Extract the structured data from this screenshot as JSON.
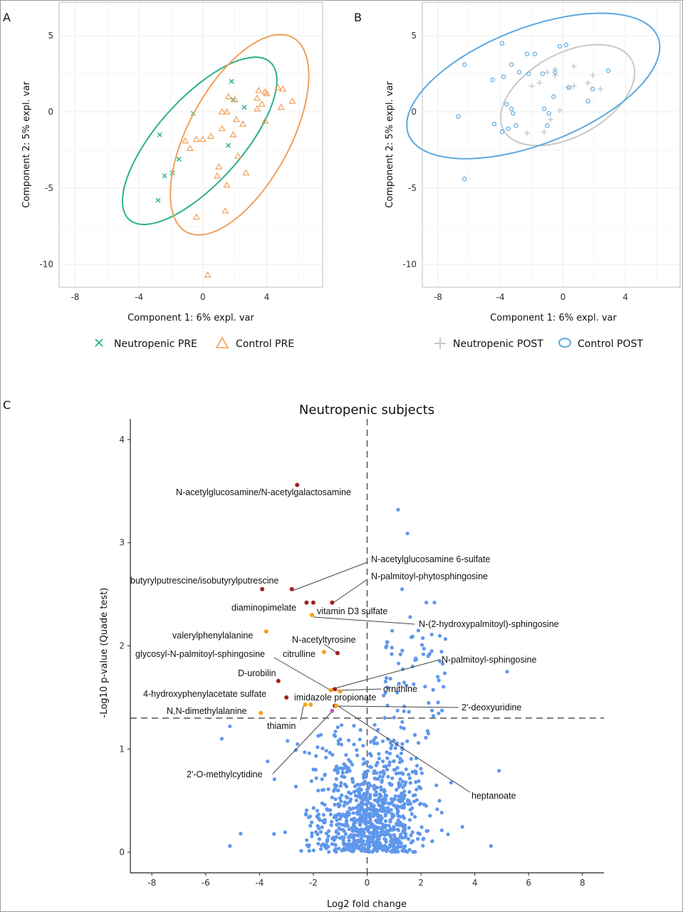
{
  "panels": {
    "a": {
      "tag": "A"
    },
    "b": {
      "tag": "B"
    },
    "c": {
      "tag": "C"
    }
  },
  "chart_data": [
    {
      "id": "A",
      "type": "scatter",
      "xlabel": "Component 1: 6% expl. var",
      "ylabel": "Component 2: 5% expl. var",
      "xlim": [
        -9,
        7.5
      ],
      "ylim": [
        -11.5,
        7.2
      ],
      "xticks": [
        -8,
        -4,
        0,
        4
      ],
      "yticks": [
        5,
        0,
        -5,
        -10
      ],
      "grid": true,
      "legend_position": "bottom",
      "series": [
        {
          "name": "Neutropenic PRE",
          "marker": "x",
          "color": "#2bb08a",
          "points": [
            [
              -2.8,
              -5.8
            ],
            [
              -2.4,
              -4.2
            ],
            [
              -1.9,
              -4.0
            ],
            [
              -1.5,
              -3.1
            ],
            [
              -2.7,
              -1.5
            ],
            [
              -0.6,
              -0.1
            ],
            [
              1.8,
              2.0
            ],
            [
              2.6,
              0.3
            ],
            [
              1.6,
              -2.2
            ],
            [
              1.9,
              0.8
            ]
          ],
          "ellipse": {
            "cx": -0.2,
            "cy": -1.9,
            "rx": 6.8,
            "ry": 2.7,
            "angle_deg": 50
          }
        },
        {
          "name": "Control PRE",
          "marker": "triangle",
          "color": "#f0a05a",
          "points": [
            [
              0.3,
              -10.7
            ],
            [
              -0.4,
              -6.9
            ],
            [
              1.4,
              -6.5
            ],
            [
              1.5,
              -4.8
            ],
            [
              0.9,
              -4.2
            ],
            [
              2.7,
              -4.0
            ],
            [
              -0.8,
              -2.4
            ],
            [
              1.0,
              -3.6
            ],
            [
              2.2,
              -2.9
            ],
            [
              -1.1,
              -1.9
            ],
            [
              -0.4,
              -1.8
            ],
            [
              0.0,
              -1.8
            ],
            [
              0.5,
              -1.6
            ],
            [
              1.2,
              -1.1
            ],
            [
              1.9,
              -1.5
            ],
            [
              2.5,
              -0.8
            ],
            [
              2.1,
              -0.5
            ],
            [
              3.9,
              -0.6
            ],
            [
              3.4,
              0.2
            ],
            [
              1.2,
              0.0
            ],
            [
              1.5,
              0.0
            ],
            [
              1.6,
              1.0
            ],
            [
              2.0,
              0.8
            ],
            [
              3.4,
              0.9
            ],
            [
              3.7,
              0.5
            ],
            [
              4.0,
              1.2
            ],
            [
              3.9,
              1.3
            ],
            [
              3.5,
              1.4
            ],
            [
              4.7,
              1.6
            ],
            [
              5.6,
              0.7
            ],
            [
              4.9,
              0.3
            ],
            [
              5.0,
              1.5
            ]
          ],
          "ellipse": {
            "cx": 2.3,
            "cy": -1.5,
            "rx": 7.2,
            "ry": 3.2,
            "angle_deg": 63
          }
        }
      ]
    },
    {
      "id": "B",
      "type": "scatter",
      "xlabel": "Component 1: 6% expl. var",
      "ylabel": "Component 2: 5% expl. var",
      "xlim": [
        -9,
        7.5
      ],
      "ylim": [
        -11.5,
        7.2
      ],
      "xticks": [
        -8,
        -4,
        0,
        4
      ],
      "yticks": [
        5,
        0,
        -5,
        -10
      ],
      "grid": true,
      "legend_position": "bottom",
      "series": [
        {
          "name": "Neutropenic POST",
          "marker": "plus",
          "color": "#c8c8c8",
          "points": [
            [
              -2.3,
              -1.4
            ],
            [
              -1.2,
              -1.3
            ],
            [
              -0.8,
              -0.5
            ],
            [
              -0.2,
              0.1
            ],
            [
              -2.0,
              1.7
            ],
            [
              -1.5,
              1.9
            ],
            [
              -1.0,
              2.6
            ],
            [
              -0.5,
              2.4
            ],
            [
              0.7,
              1.7
            ],
            [
              0.3,
              1.6
            ],
            [
              0.7,
              3.0
            ],
            [
              1.9,
              2.4
            ],
            [
              2.4,
              1.5
            ],
            [
              1.6,
              1.9
            ],
            [
              -0.5,
              2.8
            ]
          ],
          "ellipse": {
            "cx": 0.3,
            "cy": 1.1,
            "rx": 4.7,
            "ry": 2.7,
            "angle_deg": 30
          }
        },
        {
          "name": "Control POST",
          "marker": "circle",
          "color": "#5aa9e0",
          "points": [
            [
              -6.3,
              3.1
            ],
            [
              -6.7,
              -0.3
            ],
            [
              -6.3,
              -4.4
            ],
            [
              -4.5,
              2.1
            ],
            [
              -4.4,
              -0.8
            ],
            [
              -3.9,
              4.5
            ],
            [
              -3.8,
              2.3
            ],
            [
              -3.6,
              0.5
            ],
            [
              -3.5,
              -1.1
            ],
            [
              -3.9,
              -1.3
            ],
            [
              -3.3,
              3.1
            ],
            [
              -3.3,
              0.2
            ],
            [
              -3.2,
              -0.1
            ],
            [
              -3.0,
              -0.9
            ],
            [
              -2.8,
              2.6
            ],
            [
              -2.3,
              3.8
            ],
            [
              -2.2,
              2.5
            ],
            [
              -1.8,
              3.8
            ],
            [
              -1.3,
              2.5
            ],
            [
              -1.2,
              0.2
            ],
            [
              -1.0,
              -0.9
            ],
            [
              -0.9,
              -0.1
            ],
            [
              -0.6,
              1.0
            ],
            [
              -0.5,
              2.6
            ],
            [
              -0.2,
              4.3
            ],
            [
              0.2,
              4.4
            ],
            [
              0.4,
              1.6
            ],
            [
              1.6,
              0.7
            ],
            [
              1.9,
              1.5
            ],
            [
              2.9,
              2.7
            ]
          ],
          "ellipse": {
            "cx": -1.9,
            "cy": 1.7,
            "rx": 8.6,
            "ry": 3.8,
            "angle_deg": 22
          }
        }
      ]
    },
    {
      "id": "C",
      "type": "scatter",
      "title": "Neutropenic subjects",
      "xlabel": "Log2 fold change",
      "ylabel": "-Log10 p-value (Quade test)",
      "xlim": [
        -8.8,
        8.8
      ],
      "ylim": [
        -0.2,
        4.2
      ],
      "xticks": [
        -8,
        -6,
        -4,
        -2,
        0,
        2,
        4,
        6,
        8
      ],
      "yticks": [
        0,
        1,
        2,
        3,
        4
      ],
      "grid": false,
      "reference_lines": {
        "vertical_x": 0,
        "horizontal_y": 1.3
      },
      "background_color": "#5f97ec",
      "highlighted": [
        {
          "label": "N-acetylglucosamine/N-acetylgalactosamine",
          "x": -2.6,
          "y": 3.56,
          "color": "#a11f1f"
        },
        {
          "label": "N-acetylglucosamine 6-sulfate",
          "x": -2.8,
          "y": 2.55,
          "color": "#a11f1f"
        },
        {
          "label": "butyrylputrescine/isobutyrylputrescine",
          "x": -3.9,
          "y": 2.55,
          "color": "#a11f1f"
        },
        {
          "label": "N-palmitoyl-phytosphingosine",
          "x": -1.3,
          "y": 2.42,
          "color": "#a11f1f"
        },
        {
          "label": "diaminopimelate",
          "x": -2.0,
          "y": 2.42,
          "color": "#a11f1f"
        },
        {
          "label": "vitamin D3 sulfate",
          "x": -2.25,
          "y": 2.42,
          "color": "#a11f1f"
        },
        {
          "label": "N-(2-hydroxypalmitoyl)-sphingosine",
          "x": -2.05,
          "y": 2.3,
          "color": "#f5a019"
        },
        {
          "label": "valerylphenylalanine",
          "x": -3.75,
          "y": 2.14,
          "color": "#f5a019"
        },
        {
          "label": "N-acetyltyrosine",
          "x": -1.1,
          "y": 1.93,
          "color": "#a11f1f"
        },
        {
          "label": "citrulline",
          "x": -1.6,
          "y": 1.94,
          "color": "#f5a019"
        },
        {
          "label": "glycosyl-N-palmitoyl-sphingosine",
          "x": -1.35,
          "y": 1.57,
          "color": "#f5a019"
        },
        {
          "label": "N-palmitoyl-sphingosine",
          "x": -1.2,
          "y": 1.58,
          "color": "#a11f1f"
        },
        {
          "label": "D-urobilin",
          "x": -3.3,
          "y": 1.66,
          "color": "#a11f1f"
        },
        {
          "label": "ornithine",
          "x": -1.0,
          "y": 1.56,
          "color": "#f5a019"
        },
        {
          "label": "4-hydroxyphenylacetate sulfate",
          "x": -3.0,
          "y": 1.5,
          "color": "#a11f1f"
        },
        {
          "label": "imidazole propionate",
          "x": -2.1,
          "y": 1.43,
          "color": "#f5a019"
        },
        {
          "label": "2'-deoxyuridine",
          "x": -1.2,
          "y": 1.42,
          "color": "#a11f1f"
        },
        {
          "label": "N,N-dimethylalanine",
          "x": -3.95,
          "y": 1.35,
          "color": "#f5a019"
        },
        {
          "label": "thiamin",
          "x": -2.3,
          "y": 1.43,
          "color": "#f5a019"
        },
        {
          "label": "2'-O-methylcytidine",
          "x": -1.3,
          "y": 1.37,
          "color": "#c75bc7"
        },
        {
          "label": "heptanoate",
          "x": -1.15,
          "y": 1.42,
          "color": "#f5a019"
        }
      ],
      "notable_points": [
        [
          1.15,
          3.32
        ],
        [
          1.5,
          3.09
        ],
        [
          1.3,
          2.55
        ],
        [
          2.5,
          2.42
        ],
        [
          1.6,
          2.28
        ],
        [
          2.2,
          2.42
        ],
        [
          5.2,
          1.75
        ],
        [
          2.4,
          2.11
        ],
        [
          2.4,
          1.95
        ],
        [
          -5.1,
          1.22
        ],
        [
          -5.4,
          1.1
        ],
        [
          4.9,
          0.79
        ],
        [
          4.6,
          0.06
        ],
        [
          -5.1,
          0.06
        ],
        [
          -4.7,
          0.18
        ],
        [
          -3.7,
          0.88
        ]
      ]
    }
  ],
  "legends": {
    "a": [
      {
        "label": "Neutropenic PRE",
        "icon": "x-marker-icon"
      },
      {
        "label": "Control PRE",
        "icon": "triangle-marker-icon"
      }
    ],
    "b": [
      {
        "label": "Neutropenic POST",
        "icon": "plus-marker-icon"
      },
      {
        "label": "Control POST",
        "icon": "circle-marker-icon"
      }
    ]
  }
}
